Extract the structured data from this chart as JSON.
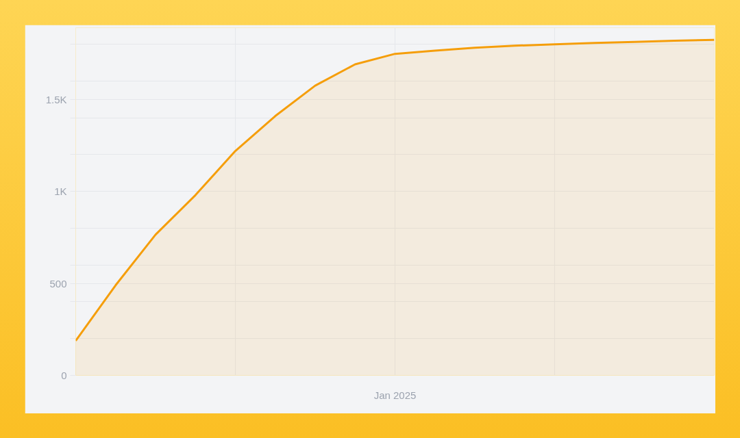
{
  "chart_data": {
    "type": "area",
    "categories": [
      null,
      null,
      null,
      null,
      null,
      null,
      null,
      null,
      null,
      null,
      null,
      null,
      null,
      null,
      null,
      null,
      null
    ],
    "series": [
      {
        "color": "#f59e0b",
        "values": [
          188,
          490,
          765,
          980,
          1220,
          1410,
          1575,
          1691,
          1748,
          1765,
          1781,
          1792,
          1800,
          1807,
          1813,
          1819,
          1824
        ]
      }
    ],
    "annotations": [
      "Jan 2025"
    ],
    "ylim": [
      0,
      1890
    ],
    "yticks": [
      {
        "value": 0,
        "label": "0"
      },
      {
        "value": 200,
        "label": null
      },
      {
        "value": 400,
        "label": null
      },
      {
        "value": 500,
        "label": "500"
      },
      {
        "value": 600,
        "label": null
      },
      {
        "value": 800,
        "label": null
      },
      {
        "value": 1000,
        "label": "1K"
      },
      {
        "value": 1200,
        "label": null
      },
      {
        "value": 1400,
        "label": null
      },
      {
        "value": 1500,
        "label": "1.5K"
      },
      {
        "value": 1600,
        "label": null
      },
      {
        "value": 1800,
        "label": null
      }
    ],
    "grid": true
  }
}
